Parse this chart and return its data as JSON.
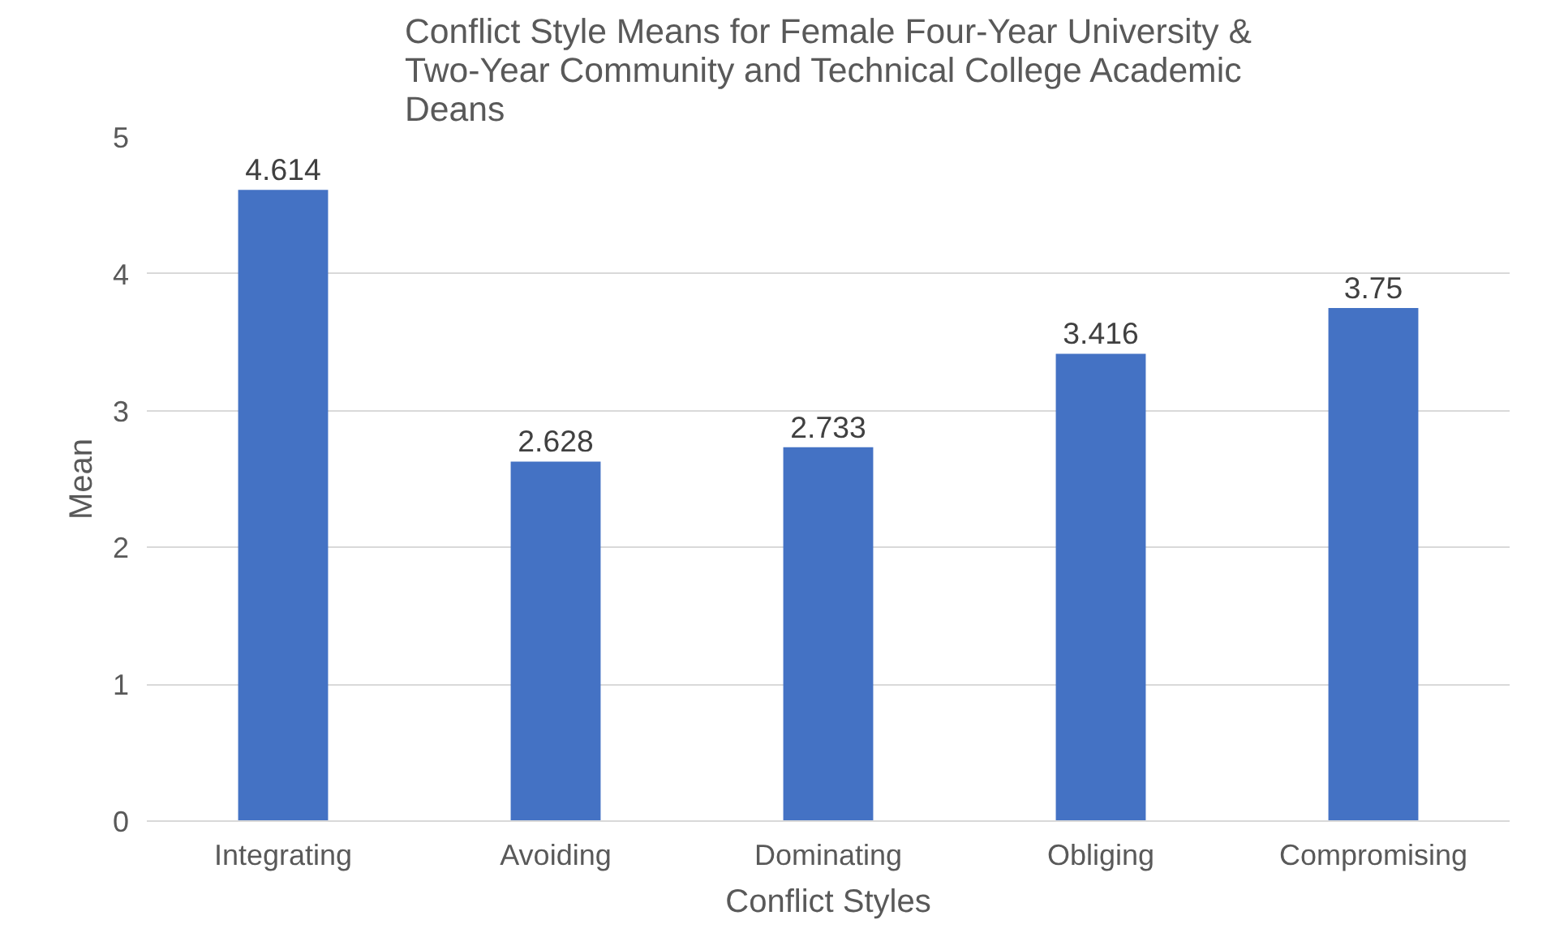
{
  "chart_data": {
    "type": "bar",
    "title": "Conflict Style Means for Female Four-Year University & Two-Year Community and Technical College Academic Deans",
    "xlabel": "Conflict Styles",
    "ylabel": "Mean",
    "categories": [
      "Integrating",
      "Avoiding",
      "Dominating",
      "Obliging",
      "Compromising"
    ],
    "values": [
      4.614,
      2.628,
      2.733,
      3.416,
      3.75
    ],
    "color": "#4472c4",
    "ylim": [
      0,
      5
    ],
    "yticks": [
      0,
      1,
      2,
      3,
      4,
      5
    ],
    "grid": "y",
    "data_labels": true
  }
}
